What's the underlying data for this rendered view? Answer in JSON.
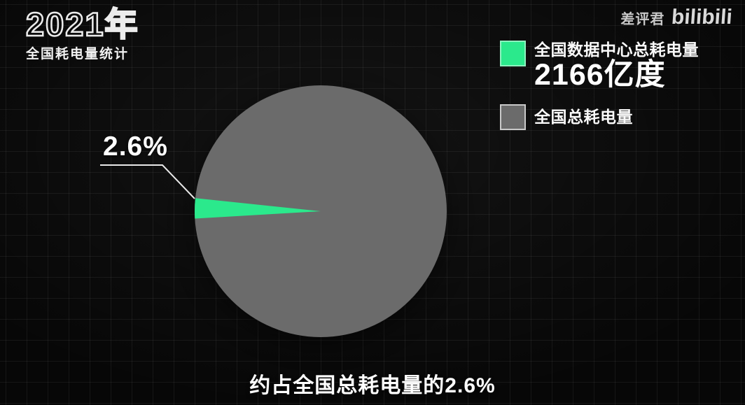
{
  "header": {
    "title": "2021年",
    "subtitle": "全国耗电量统计",
    "watermark": "差评君",
    "logo": "bilibili"
  },
  "legend": [
    {
      "label": "全国数据中心总耗电量",
      "value": "2166亿度",
      "color": "#2be98c",
      "border": "#8df2bf"
    },
    {
      "label": "全国总耗电量",
      "color": "#6b6b6b",
      "border": "#c9c9c9"
    }
  ],
  "chart_data": {
    "type": "pie",
    "title": "2021年 全国耗电量统计",
    "slices": [
      {
        "label": "全国数据中心总耗电量",
        "value": 2166,
        "unit": "亿度",
        "percent": 2.6,
        "color": "#2be98c"
      },
      {
        "label": "全国总耗电量",
        "percent": 97.4,
        "color": "#6b6b6b"
      }
    ],
    "callout_label": "2.6%",
    "start_angle_deg": 174,
    "legend_position": "top-right",
    "annotation": "约占全国总耗电量的2.6%",
    "callout_line_color": "#e9e9e9"
  },
  "caption": "约占全国总耗电量的2.6%"
}
